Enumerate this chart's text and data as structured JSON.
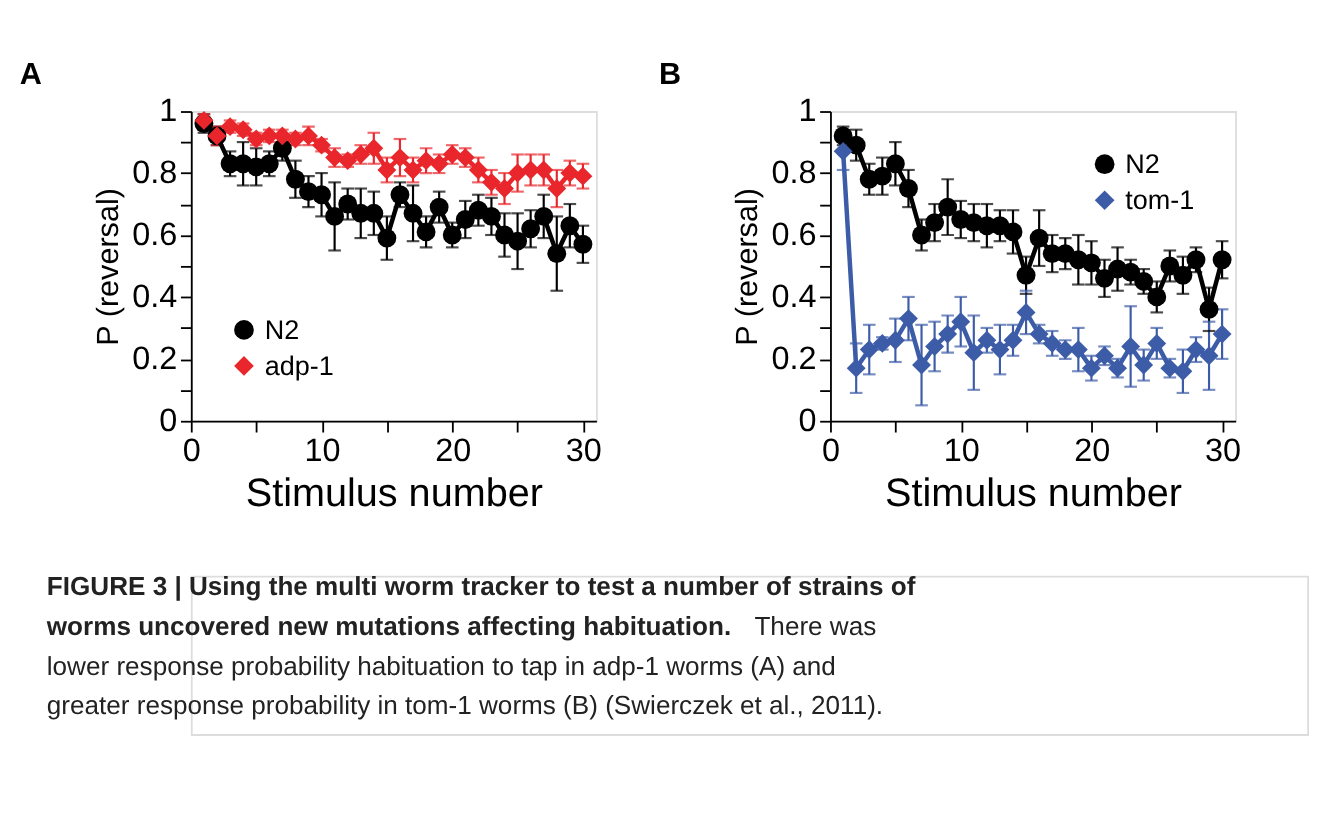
{
  "chart_data": [
    {
      "type": "line",
      "title": "A",
      "xlabel": "Stimulus number",
      "ylabel": "P (reversal)",
      "x": [
        1,
        2,
        3,
        4,
        5,
        6,
        7,
        8,
        9,
        10,
        11,
        12,
        13,
        14,
        15,
        16,
        17,
        18,
        19,
        20,
        21,
        22,
        23,
        24,
        25,
        26,
        27,
        28,
        29,
        30
      ],
      "series": [
        {
          "name": "N2",
          "color": "#000000",
          "marker": "circle",
          "values": [
            0.96,
            0.92,
            0.83,
            0.83,
            0.82,
            0.83,
            0.88,
            0.78,
            0.74,
            0.73,
            0.66,
            0.7,
            0.67,
            0.67,
            0.59,
            0.73,
            0.67,
            0.61,
            0.69,
            0.6,
            0.65,
            0.68,
            0.66,
            0.6,
            0.58,
            0.62,
            0.66,
            0.54,
            0.63,
            0.57
          ],
          "errors": [
            0.03,
            0.03,
            0.04,
            0.07,
            0.06,
            0.04,
            0.04,
            0.06,
            0.05,
            0.07,
            0.11,
            0.05,
            0.08,
            0.07,
            0.07,
            0.04,
            0.09,
            0.05,
            0.05,
            0.04,
            0.06,
            0.05,
            0.06,
            0.07,
            0.09,
            0.06,
            0.07,
            0.12,
            0.07,
            0.06
          ]
        },
        {
          "name": "adp-1",
          "color": "#e8262b",
          "marker": "diamond",
          "values": [
            0.97,
            0.92,
            0.95,
            0.94,
            0.91,
            0.92,
            0.92,
            0.91,
            0.92,
            0.89,
            0.85,
            0.84,
            0.86,
            0.88,
            0.81,
            0.85,
            0.81,
            0.84,
            0.83,
            0.86,
            0.85,
            0.81,
            0.77,
            0.75,
            0.8,
            0.81,
            0.81,
            0.75,
            0.8,
            0.79
          ],
          "errors": [
            0.02,
            0.03,
            0.02,
            0.02,
            0.02,
            0.02,
            0.02,
            0.02,
            0.03,
            0.02,
            0.03,
            0.02,
            0.03,
            0.05,
            0.04,
            0.06,
            0.04,
            0.04,
            0.03,
            0.03,
            0.03,
            0.04,
            0.04,
            0.05,
            0.06,
            0.05,
            0.05,
            0.06,
            0.04,
            0.04
          ]
        }
      ],
      "xlim": [
        0,
        31
      ],
      "xticks": [
        0,
        {
          "value": 5,
          "label": null
        },
        10,
        {
          "value": 15,
          "label": null
        },
        20,
        {
          "value": 25,
          "label": null
        },
        30
      ],
      "ylim": [
        0,
        1
      ],
      "yticks": [
        0,
        {
          "value": 0.1,
          "label": null
        },
        0.2,
        {
          "value": 0.3,
          "label": null
        },
        0.4,
        {
          "value": 0.5,
          "label": null
        },
        0.6,
        {
          "value": 0.7,
          "label": null
        },
        0.8,
        {
          "value": 0.9,
          "label": null
        },
        1
      ],
      "legend": "bottom left",
      "grid": false,
      "annotations": [
        "FIGURE 3 | Using the multi worm tracker to test a number of strains of",
        "worms uncovered new mutations affecting habituation.",
        "There was",
        "lower response probability habituation to tap in adp-1 worms (A) and",
        "greater response probability in tom-1 worms (B) (Swierczek et al., 2011)."
      ]
    },
    {
      "type": "line",
      "title": "B",
      "xlabel": "Stimulus number",
      "ylabel": "P (reversal)",
      "x": [
        1,
        2,
        3,
        4,
        5,
        6,
        7,
        8,
        9,
        10,
        11,
        12,
        13,
        14,
        15,
        16,
        17,
        18,
        19,
        20,
        21,
        22,
        23,
        24,
        25,
        26,
        27,
        28,
        29,
        30
      ],
      "series": [
        {
          "name": "N2",
          "color": "#000000",
          "marker": "circle",
          "values": [
            0.92,
            0.89,
            0.78,
            0.79,
            0.83,
            0.75,
            0.6,
            0.64,
            0.69,
            0.65,
            0.64,
            0.63,
            0.63,
            0.61,
            0.47,
            0.59,
            0.54,
            0.54,
            0.52,
            0.51,
            0.46,
            0.49,
            0.48,
            0.45,
            0.4,
            0.5,
            0.47,
            0.52,
            0.36,
            0.52
          ],
          "errors": [
            0.03,
            0.05,
            0.05,
            0.06,
            0.07,
            0.06,
            0.05,
            0.06,
            0.09,
            0.06,
            0.06,
            0.07,
            0.05,
            0.07,
            0.06,
            0.09,
            0.06,
            0.05,
            0.08,
            0.07,
            0.06,
            0.07,
            0.04,
            0.04,
            0.05,
            0.05,
            0.06,
            0.04,
            0.07,
            0.06
          ]
        },
        {
          "name": "tom-1",
          "color": "#3d5ca8",
          "marker": "diamond",
          "values": [
            0.87,
            0.17,
            0.23,
            0.25,
            0.26,
            0.33,
            0.18,
            0.24,
            0.28,
            0.32,
            0.22,
            0.26,
            0.23,
            0.26,
            0.35,
            0.28,
            0.25,
            0.23,
            0.23,
            0.17,
            0.21,
            0.17,
            0.24,
            0.18,
            0.25,
            0.17,
            0.16,
            0.23,
            0.21,
            0.28
          ],
          "errors": [
            0.06,
            0.08,
            0.08,
            0.02,
            0.07,
            0.07,
            0.13,
            0.08,
            0.06,
            0.08,
            0.12,
            0.04,
            0.08,
            0.05,
            0.07,
            0.03,
            0.04,
            0.03,
            0.07,
            0.04,
            0.03,
            0.03,
            0.13,
            0.05,
            0.05,
            0.03,
            0.07,
            0.04,
            0.11,
            0.08
          ]
        }
      ],
      "xlim": [
        0,
        31
      ],
      "xticks": [
        0,
        {
          "value": 5,
          "label": null
        },
        10,
        {
          "value": 15,
          "label": null
        },
        20,
        {
          "value": 25,
          "label": null
        },
        30
      ],
      "ylim": [
        0,
        1
      ],
      "yticks": [
        0,
        {
          "value": 0.1,
          "label": null
        },
        0.2,
        {
          "value": 0.3,
          "label": null
        },
        0.4,
        {
          "value": 0.5,
          "label": null
        },
        0.6,
        {
          "value": 0.7,
          "label": null
        },
        0.8,
        {
          "value": 0.9,
          "label": null
        },
        1
      ],
      "legend": "top right",
      "grid": false
    }
  ]
}
